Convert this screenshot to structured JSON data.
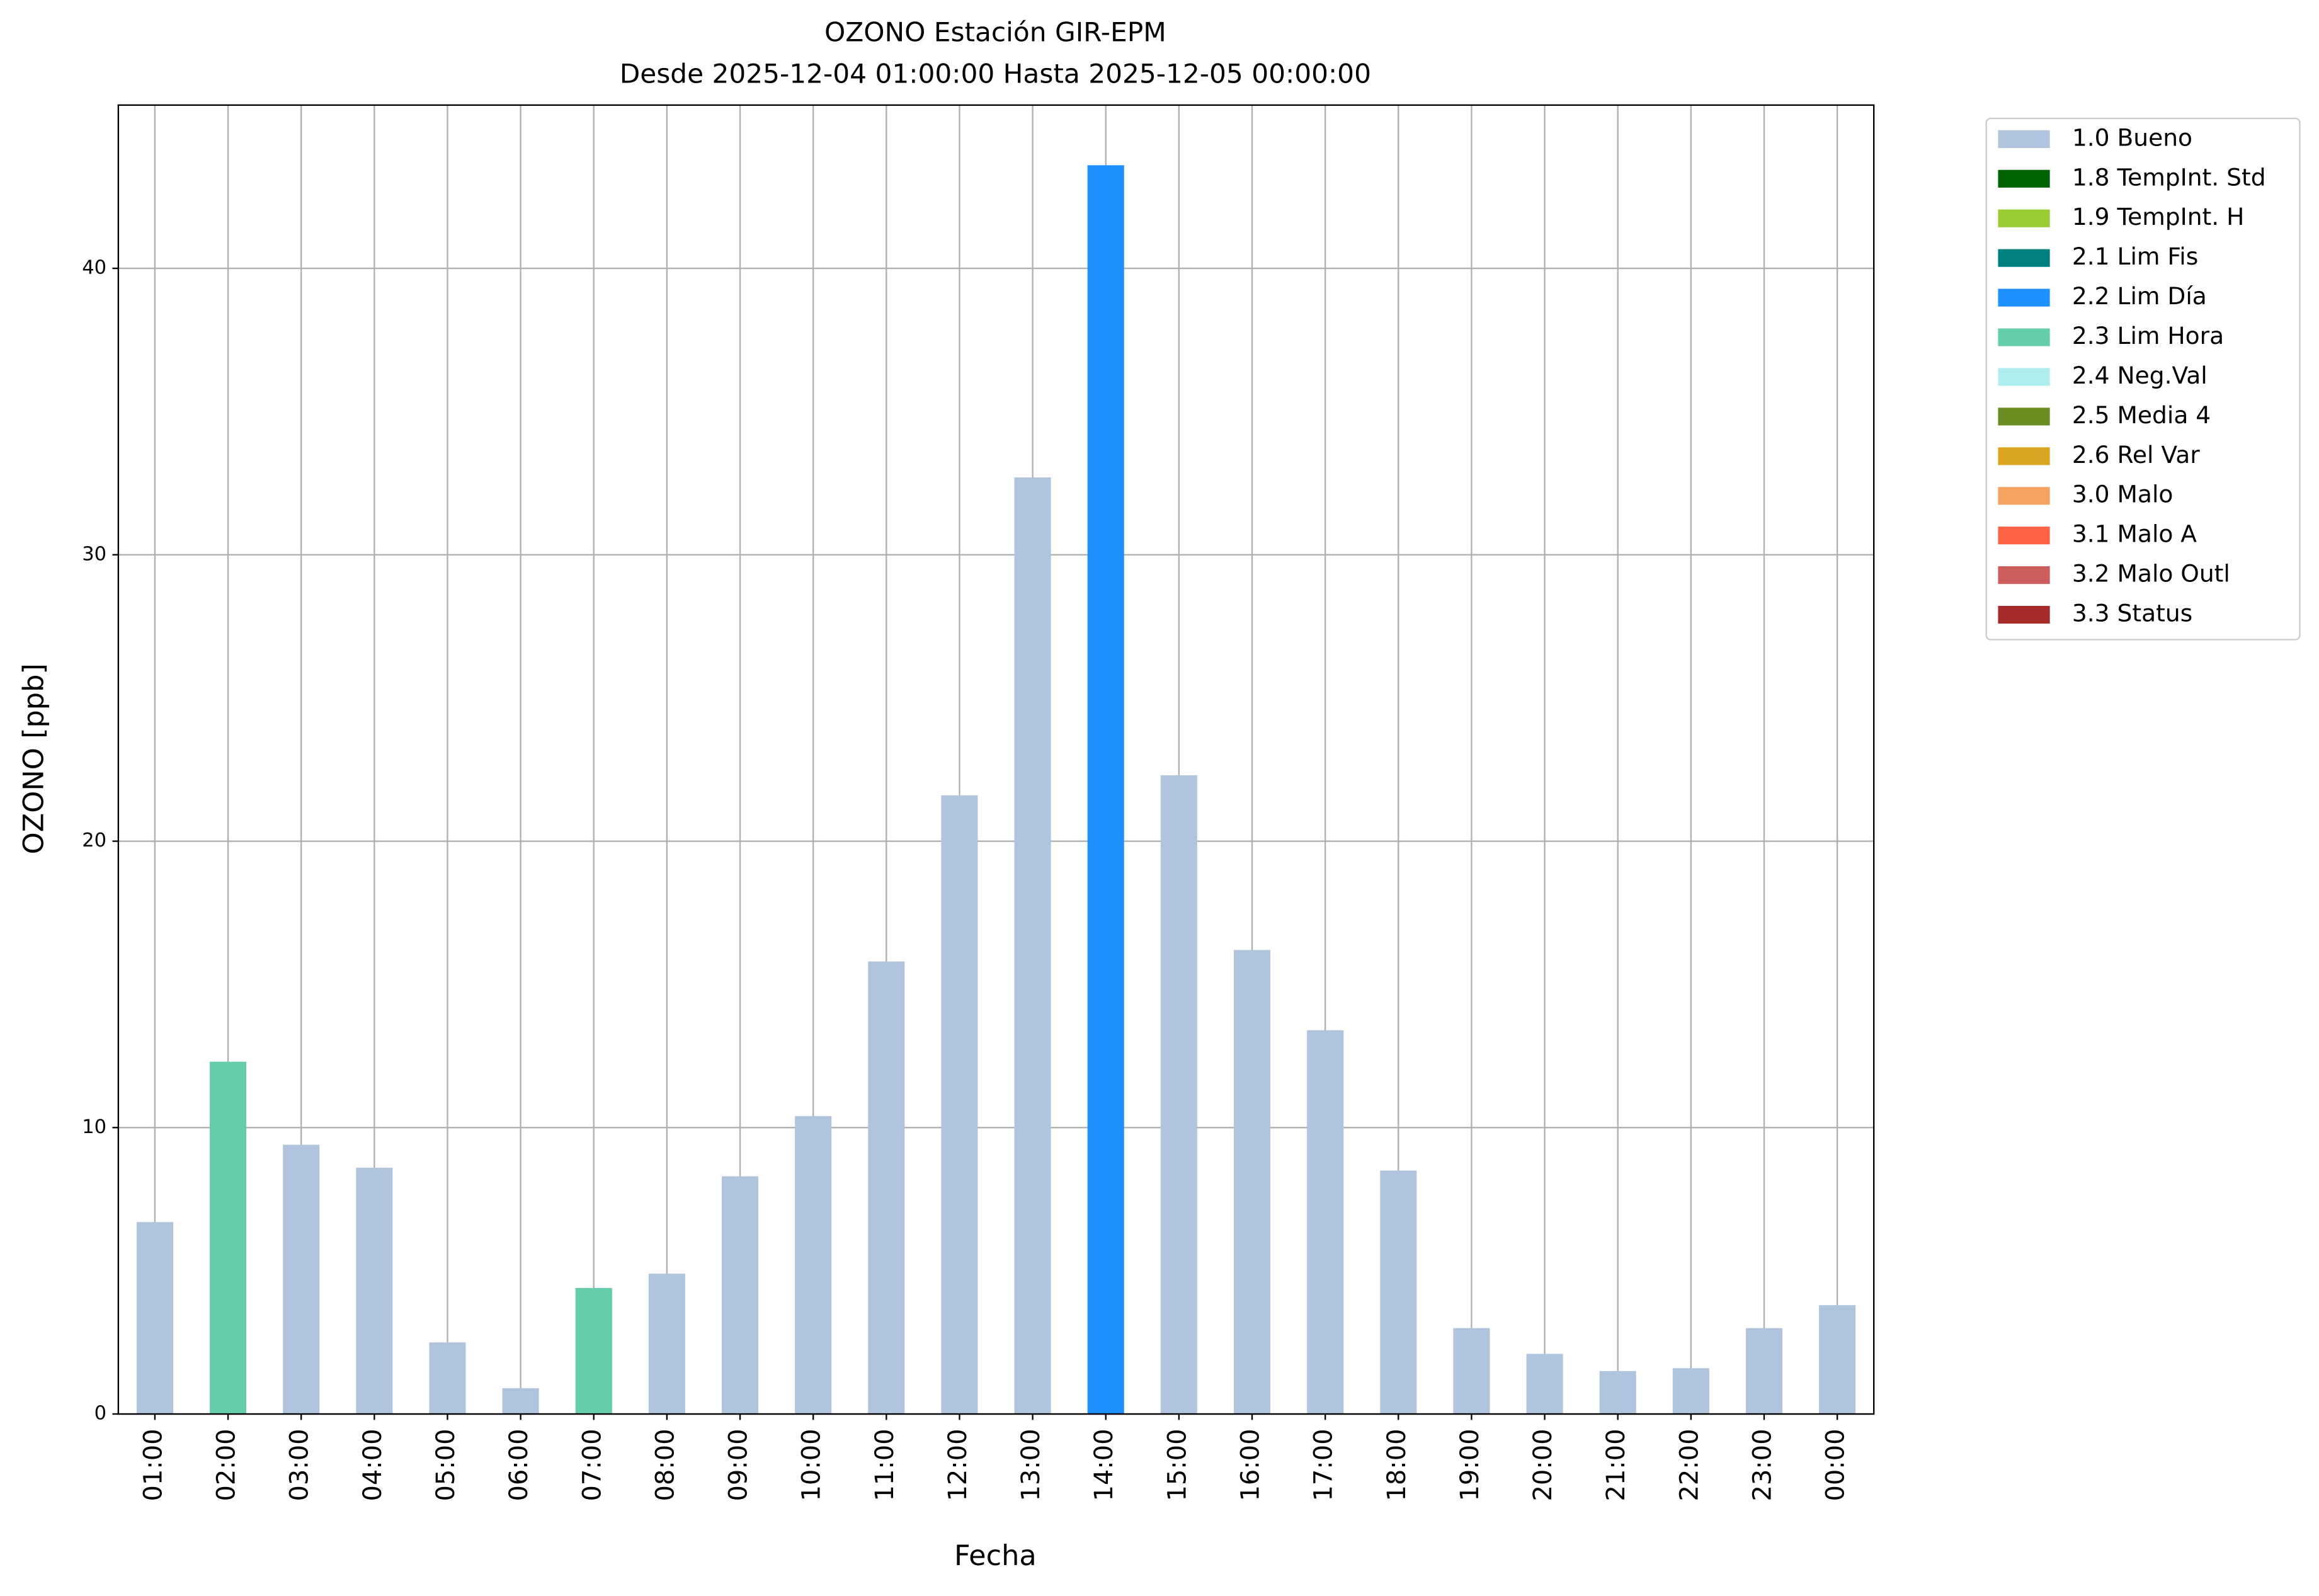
{
  "chart_data": {
    "type": "stacked_bar",
    "title": "OZONO Estación GIR-EPM",
    "subtitle": "Desde 2025-12-04 01:00:00 Hasta 2025-12-05 00:00:00",
    "x_label": "Fecha",
    "y_label": "OZONO [ppb]",
    "categories": [
      "01:00",
      "02:00",
      "03:00",
      "04:00",
      "05:00",
      "06:00",
      "07:00",
      "08:00",
      "09:00",
      "10:00",
      "11:00",
      "12:00",
      "13:00",
      "14:00",
      "15:00",
      "16:00",
      "17:00",
      "18:00",
      "19:00",
      "20:00",
      "21:00",
      "22:00",
      "23:00",
      "00:00"
    ],
    "series": [
      {
        "name": "1.0 Bueno",
        "color": "#b0c4de",
        "values": [
          6.7,
          null,
          9.4,
          8.6,
          2.5,
          0.9,
          null,
          4.9,
          8.3,
          10.4,
          15.8,
          21.6,
          32.7,
          null,
          22.3,
          16.2,
          13.4,
          8.5,
          3.0,
          2.1,
          1.5,
          1.6,
          3.0,
          3.8
        ]
      },
      {
        "name": "1.8 TempInt. Std",
        "color": "#006400",
        "values": [
          null,
          null,
          null,
          null,
          null,
          null,
          null,
          null,
          null,
          null,
          null,
          null,
          null,
          null,
          null,
          null,
          null,
          null,
          null,
          null,
          null,
          null,
          null,
          null
        ]
      },
      {
        "name": "1.9 TempInt. H",
        "color": "#9acd32",
        "values": [
          null,
          null,
          null,
          null,
          null,
          null,
          null,
          null,
          null,
          null,
          null,
          null,
          null,
          null,
          null,
          null,
          null,
          null,
          null,
          null,
          null,
          null,
          null,
          null
        ]
      },
      {
        "name": "2.1 Lim Fis",
        "color": "#008080",
        "values": [
          null,
          null,
          null,
          null,
          null,
          null,
          null,
          null,
          null,
          null,
          null,
          null,
          null,
          null,
          null,
          null,
          null,
          null,
          null,
          null,
          null,
          null,
          null,
          null
        ]
      },
      {
        "name": "2.2 Lim Día",
        "color": "#1e90ff",
        "values": [
          null,
          null,
          null,
          null,
          null,
          null,
          null,
          null,
          null,
          null,
          null,
          null,
          null,
          43.6,
          null,
          null,
          null,
          null,
          null,
          null,
          null,
          null,
          null,
          null
        ]
      },
      {
        "name": "2.3 Lim Hora",
        "color": "#66cdaa",
        "values": [
          null,
          12.3,
          null,
          null,
          null,
          null,
          4.4,
          null,
          null,
          null,
          null,
          null,
          null,
          null,
          null,
          null,
          null,
          null,
          null,
          null,
          null,
          null,
          null,
          null
        ]
      },
      {
        "name": "2.4 Neg.Val",
        "color": "#afeeee",
        "values": [
          null,
          null,
          null,
          null,
          null,
          null,
          null,
          null,
          null,
          null,
          null,
          null,
          null,
          null,
          null,
          null,
          null,
          null,
          null,
          null,
          null,
          null,
          null,
          null
        ]
      },
      {
        "name": "2.5 Media 4",
        "color": "#6b8e23",
        "values": [
          null,
          null,
          null,
          null,
          null,
          null,
          null,
          null,
          null,
          null,
          null,
          null,
          null,
          null,
          null,
          null,
          null,
          null,
          null,
          null,
          null,
          null,
          null,
          null
        ]
      },
      {
        "name": "2.6 Rel Var",
        "color": "#daa520",
        "values": [
          null,
          null,
          null,
          null,
          null,
          null,
          null,
          null,
          null,
          null,
          null,
          null,
          null,
          null,
          null,
          null,
          null,
          null,
          null,
          null,
          null,
          null,
          null,
          null
        ]
      },
      {
        "name": "3.0 Malo",
        "color": "#f4a460",
        "values": [
          null,
          null,
          null,
          null,
          null,
          null,
          null,
          null,
          null,
          null,
          null,
          null,
          null,
          null,
          null,
          null,
          null,
          null,
          null,
          null,
          null,
          null,
          null,
          null
        ]
      },
      {
        "name": "3.1 Malo A",
        "color": "#ff6347",
        "values": [
          null,
          null,
          null,
          null,
          null,
          null,
          null,
          null,
          null,
          null,
          null,
          null,
          null,
          null,
          null,
          null,
          null,
          null,
          null,
          null,
          null,
          null,
          null,
          null
        ]
      },
      {
        "name": "3.2 Malo Outl",
        "color": "#cd5c5c",
        "values": [
          null,
          null,
          null,
          null,
          null,
          null,
          null,
          null,
          null,
          null,
          null,
          null,
          null,
          null,
          null,
          null,
          null,
          null,
          null,
          null,
          null,
          null,
          null,
          null
        ]
      },
      {
        "name": "3.3 Status",
        "color": "#a52a2a",
        "values": [
          null,
          null,
          null,
          null,
          null,
          null,
          null,
          null,
          null,
          null,
          null,
          null,
          null,
          null,
          null,
          null,
          null,
          null,
          null,
          null,
          null,
          null,
          null,
          null
        ]
      }
    ],
    "ylim": [
      0,
      45.7
    ],
    "yticks": [
      0,
      10,
      20,
      30,
      40
    ],
    "grid": true,
    "legend": "outside-upper-right"
  }
}
